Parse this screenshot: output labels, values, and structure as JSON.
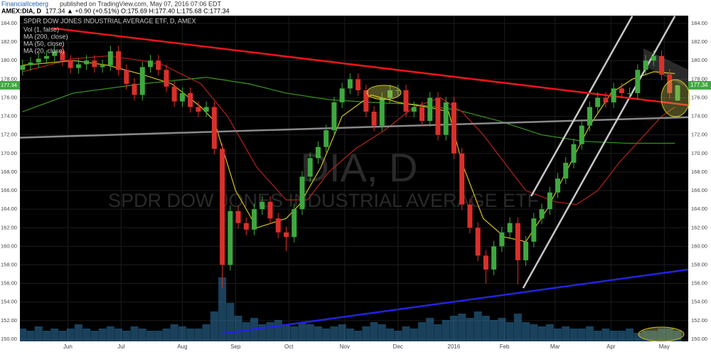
{
  "header": {
    "author": "FinancialIceberg",
    "published": "published on TradingView.com, May 07, 2016 07:06 EDT",
    "symbol": "AMEX:DIA, D",
    "quote": "177.34 ▲ +0.90 (+0.51%) O:175.69 H:177.40 L:175.68 C:177.34"
  },
  "chart_data": {
    "type": "candlestick",
    "title": "SPDR DOW JONES INDUSTRIAL AVERAGE ETF, D, AMEX",
    "watermark": "DIA, D",
    "watermark_subtitle": "SPDR DOW JONES INDUSTRIAL AVERAGE ETF",
    "up_color": "#3fa83f",
    "down_color": "#d9302c",
    "xlim": [
      7,
      258
    ],
    "xticks": [
      {
        "value": 25,
        "label": "Jun"
      },
      {
        "value": 45,
        "label": "Jul"
      },
      {
        "value": 68,
        "label": "Aug"
      },
      {
        "value": 88,
        "label": "Sep"
      },
      {
        "value": 108,
        "label": "Oct"
      },
      {
        "value": 129,
        "label": "Nov"
      },
      {
        "value": 149,
        "label": "Dec"
      },
      {
        "value": 170,
        "label": "2016"
      },
      {
        "value": 189,
        "label": "Feb"
      },
      {
        "value": 208,
        "label": "Mar"
      },
      {
        "value": 229,
        "label": "Apr"
      },
      {
        "value": 249,
        "label": "May"
      }
    ],
    "ylim": [
      149.77,
      184.84
    ],
    "yticks": [
      {
        "value": 150,
        "label": "150.00"
      },
      {
        "value": 152,
        "label": "152.00"
      },
      {
        "value": 154,
        "label": "154.00"
      },
      {
        "value": 156,
        "label": "156.00"
      },
      {
        "value": 158,
        "label": "158.00"
      },
      {
        "value": 160,
        "label": "160.00"
      },
      {
        "value": 162,
        "label": "162.00"
      },
      {
        "value": 164,
        "label": "164.00"
      },
      {
        "value": 166,
        "label": "166.00"
      },
      {
        "value": 168,
        "label": "168.00"
      },
      {
        "value": 170,
        "label": "170.00"
      },
      {
        "value": 172,
        "label": "172.00"
      },
      {
        "value": 174,
        "label": "174.00"
      },
      {
        "value": 176,
        "label": "176.00"
      },
      {
        "value": 178,
        "label": "178.00"
      },
      {
        "value": 180,
        "label": "180.00"
      },
      {
        "value": 182,
        "label": "182.00"
      },
      {
        "value": 184,
        "label": "184.00"
      }
    ],
    "grid": true,
    "x": [
      8,
      11,
      14,
      17,
      20,
      23,
      26,
      29,
      32,
      35,
      38,
      41,
      44,
      47,
      50,
      53,
      56,
      59,
      62,
      65,
      68,
      71,
      74,
      77,
      80,
      83,
      86,
      89,
      92,
      95,
      98,
      101,
      104,
      107,
      110,
      113,
      116,
      119,
      122,
      125,
      128,
      131,
      134,
      137,
      140,
      143,
      146,
      149,
      152,
      155,
      158,
      161,
      164,
      167,
      170,
      173,
      176,
      179,
      182,
      185,
      188,
      191,
      194,
      197,
      200,
      203,
      206,
      209,
      212,
      215,
      218,
      221,
      224,
      227,
      230,
      233,
      236,
      239,
      242,
      245,
      248,
      251,
      254
    ],
    "open": [
      179,
      179.5,
      179.8,
      180.2,
      180.5,
      181,
      180,
      179.2,
      179.6,
      180,
      179.3,
      179.5,
      181,
      179,
      177.5,
      176.3,
      179.3,
      180,
      179,
      177.2,
      175.6,
      176.5,
      175,
      174.5,
      175,
      170.5,
      158,
      163.8,
      162.5,
      161.8,
      164,
      164.8,
      163,
      161.5,
      161,
      164,
      167.5,
      169.5,
      170.7,
      172.5,
      175.5,
      177,
      178,
      176.8,
      174.5,
      173,
      176,
      176.8,
      176.8,
      174.5,
      175,
      173.5,
      176,
      172,
      175.5,
      170,
      164.5,
      162,
      159,
      157.5,
      160,
      161.5,
      162.5,
      158.5,
      160.5,
      163,
      164,
      165.8,
      167.3,
      169,
      171,
      173,
      175,
      176,
      175.5,
      177,
      176.5,
      176.5,
      179,
      180,
      180.5,
      178.5,
      175.69
    ],
    "high": [
      180.1,
      180.4,
      180.8,
      181.1,
      181.6,
      181.6,
      180.6,
      180.2,
      180.6,
      180.6,
      180.1,
      181.6,
      181.6,
      179.6,
      178.1,
      179.9,
      180.6,
      180.6,
      179.6,
      177.8,
      177.1,
      177.1,
      175.6,
      175.6,
      175.6,
      171.1,
      164.4,
      164.4,
      163.1,
      164.6,
      165.4,
      165.4,
      163.6,
      162.1,
      164.6,
      168.1,
      170.1,
      171.3,
      173.1,
      176.1,
      177.6,
      178.6,
      178.6,
      177.4,
      175.1,
      176.6,
      177.4,
      177.4,
      177.4,
      175.6,
      175.6,
      176.6,
      176.6,
      176.1,
      176.1,
      170.6,
      165.1,
      162.6,
      159.6,
      160.6,
      162.1,
      163.1,
      163.1,
      161.1,
      163.6,
      164.6,
      166.4,
      167.9,
      169.6,
      171.6,
      173.6,
      175.6,
      176.6,
      176.6,
      177.6,
      177.6,
      177.1,
      179.6,
      180.6,
      181.1,
      181.1,
      179.1,
      177.4
    ],
    "low": [
      178.4,
      178.9,
      179.2,
      179.6,
      179.9,
      179.4,
      178.6,
      178.6,
      179,
      178.7,
      178.7,
      178.9,
      178.4,
      176.9,
      175.7,
      175.7,
      178.7,
      178.4,
      176.6,
      175,
      175,
      174.4,
      173.9,
      173.9,
      169.9,
      155.5,
      157.4,
      161.9,
      161.2,
      161.2,
      163.4,
      162.4,
      160.9,
      159.5,
      160.4,
      163.4,
      166.9,
      168.9,
      170.1,
      171.9,
      174.9,
      176.4,
      176.2,
      173.9,
      172.4,
      172.4,
      175.4,
      176.2,
      173.9,
      173.9,
      172.9,
      172.9,
      171.4,
      171.4,
      169.4,
      163.9,
      161.4,
      158.4,
      156,
      156.9,
      159.4,
      160.9,
      155.9,
      157.9,
      159.9,
      162.4,
      163.4,
      165.2,
      166.7,
      168.4,
      170.4,
      172.4,
      174.4,
      174.9,
      174.9,
      175.9,
      175.9,
      175.9,
      178.4,
      179.4,
      177.9,
      175.9,
      175.68
    ],
    "close": [
      179.5,
      179.8,
      180.2,
      180.5,
      181,
      180,
      179.2,
      179.6,
      180,
      179.3,
      179.5,
      181,
      179,
      177.5,
      176.3,
      179.3,
      180,
      179,
      177.2,
      175.6,
      176.5,
      175,
      174.5,
      175,
      170.5,
      158,
      163.8,
      162.5,
      161.8,
      164,
      164.8,
      163,
      161.5,
      161,
      164,
      167.5,
      169.5,
      170.7,
      172.5,
      175.5,
      177,
      178,
      176.8,
      174.5,
      173,
      176,
      176.8,
      176.8,
      174.5,
      175,
      173.5,
      176,
      172,
      175.5,
      170,
      164.5,
      162,
      159,
      157.5,
      160,
      161.5,
      162.5,
      158.5,
      160.5,
      163,
      164,
      165.8,
      167.3,
      169,
      171,
      173,
      175,
      176,
      175.5,
      177,
      176.5,
      176.5,
      179,
      180,
      180.5,
      178.5,
      176.5,
      177.34
    ],
    "volume": {
      "name": "Vol (1, false)",
      "color": "#2f77a8",
      "ylim": [
        0,
        40
      ],
      "values": [
        6,
        5,
        7,
        5,
        6,
        5,
        6,
        8,
        6,
        5,
        6,
        7,
        6,
        5,
        7,
        6,
        5,
        5,
        6,
        8,
        7,
        6,
        6,
        8,
        14,
        30,
        18,
        12,
        9,
        11,
        8,
        9,
        10,
        8,
        7,
        9,
        8,
        7,
        6,
        7,
        8,
        6,
        5,
        7,
        9,
        8,
        6,
        5,
        7,
        6,
        9,
        11,
        8,
        10,
        12,
        13,
        11,
        14,
        12,
        10,
        11,
        9,
        13,
        9,
        8,
        7,
        8,
        6,
        7,
        6,
        6,
        7,
        5,
        6,
        5,
        5,
        6,
        4,
        5,
        5,
        6,
        6,
        5
      ]
    },
    "series": [
      {
        "name": "MA (200, close)",
        "color": "#3c9a1e",
        "x": [
          8,
          27,
          53,
          77,
          93,
          107,
          123,
          139,
          155,
          171,
          187,
          203,
          219,
          235,
          253
        ],
        "values": [
          174.5,
          176.5,
          177.5,
          178.2,
          177.5,
          176.5,
          175.8,
          175.5,
          175.3,
          174.7,
          173.5,
          172,
          171.3,
          171.1,
          171.1
        ]
      },
      {
        "name": "MA (50, close)",
        "color": "#b3221d",
        "x": [
          8,
          27,
          40,
          53,
          61,
          75,
          85,
          96,
          107,
          115,
          123,
          133,
          144,
          155,
          165,
          173,
          181,
          189,
          197,
          208,
          216,
          224,
          232,
          240,
          248,
          253
        ],
        "values": [
          178.8,
          180.2,
          180.5,
          180,
          179.5,
          177.5,
          174,
          168.5,
          165,
          165,
          168,
          170.5,
          172.5,
          175,
          176,
          174.5,
          172,
          169,
          166,
          164.8,
          164.5,
          166,
          169,
          171.5,
          174,
          175
        ]
      },
      {
        "name": "MA (20, close)",
        "color": "#d4c21c",
        "x": [
          8,
          27,
          40,
          53,
          64,
          75,
          80,
          88,
          96,
          107,
          112,
          120,
          128,
          139,
          149,
          160,
          168,
          173,
          181,
          189,
          197,
          205,
          213,
          221,
          229,
          237,
          245,
          253
        ],
        "values": [
          179.5,
          180,
          179.5,
          178.5,
          177.5,
          175,
          173.5,
          166,
          162,
          163,
          164.5,
          168.5,
          174,
          176.3,
          175.5,
          175,
          174.5,
          169,
          163,
          161,
          160.5,
          164,
          168.5,
          173,
          176.5,
          178,
          178.8,
          178.6
        ]
      }
    ],
    "trendlines": [
      {
        "color": "#8a8a8a",
        "x": [
          7,
          258
        ],
        "y": [
          171.7,
          173.9
        ]
      },
      {
        "color": "#c8c8c8",
        "x": [
          196,
          253
        ],
        "y": [
          155.5,
          184.8
        ]
      },
      {
        "color": "#c8c8c8",
        "x": [
          199,
          237
        ],
        "y": [
          165.4,
          184.8
        ]
      },
      {
        "color": "#e8161b",
        "x": [
          19,
          258
        ],
        "y": [
          183.5,
          175.2
        ]
      },
      {
        "color": "#2323e0",
        "x": [
          83,
          258
        ],
        "y": [
          150.6,
          157.5
        ]
      }
    ]
  }
}
